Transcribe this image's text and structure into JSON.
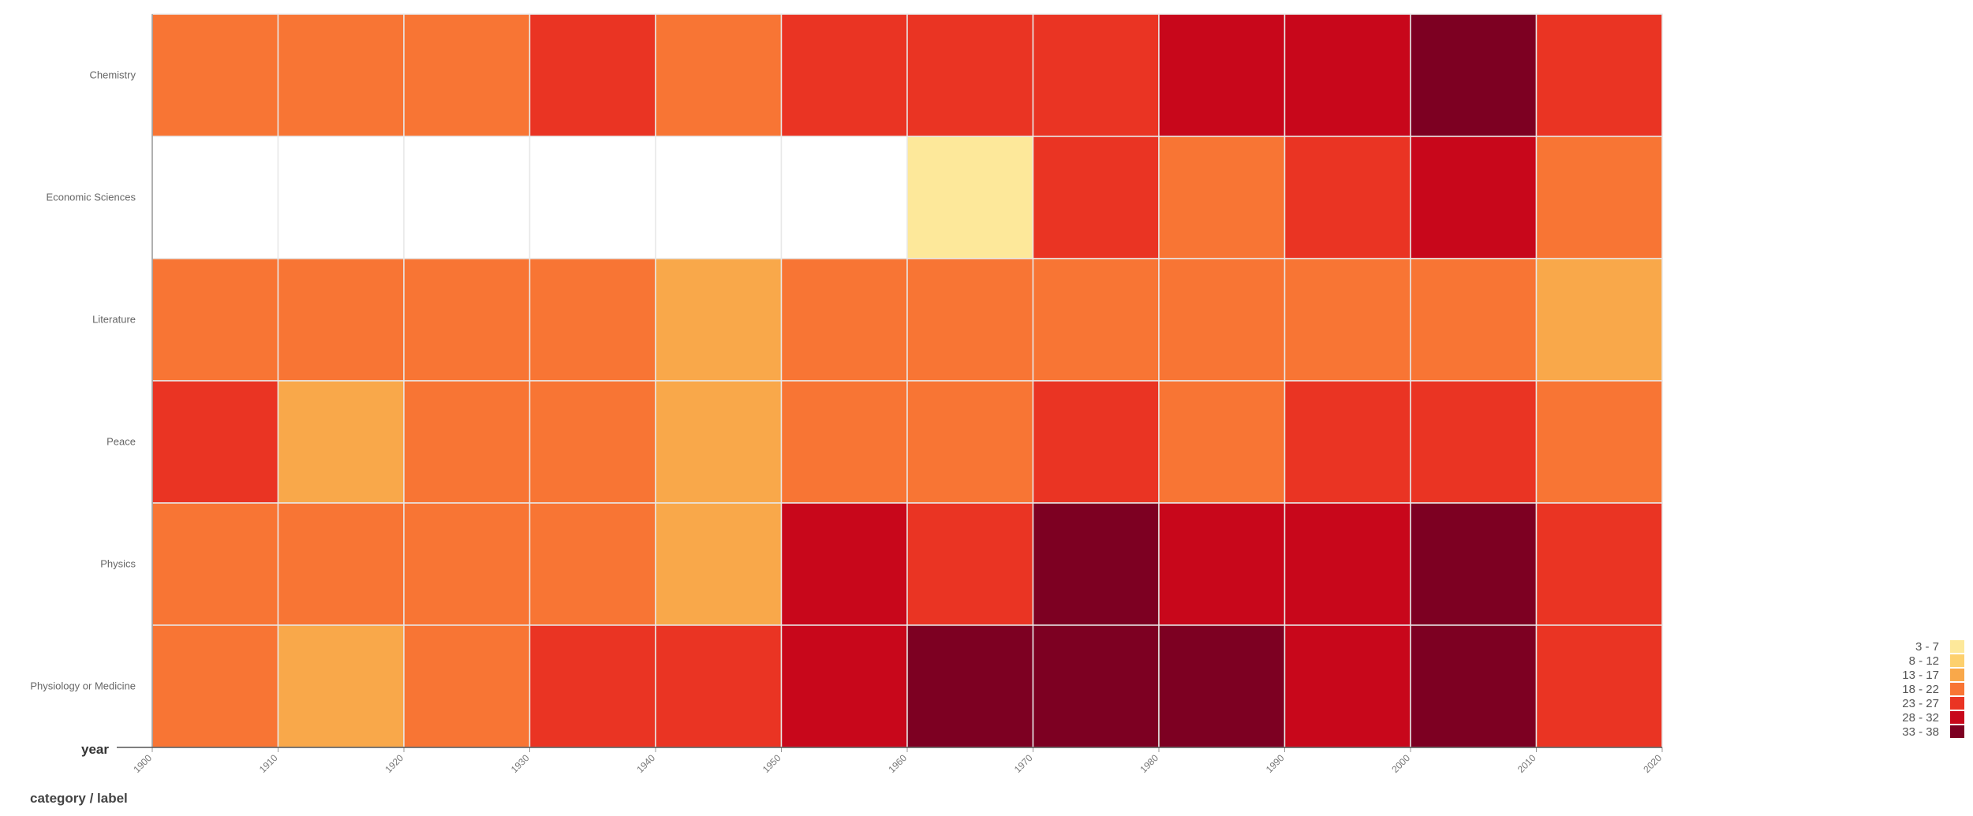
{
  "chart_data": {
    "type": "heatmap",
    "title": "",
    "x_axis_title": "year",
    "footer_label": "category / label",
    "columns": [
      "1900",
      "1910",
      "1920",
      "1930",
      "1940",
      "1950",
      "1960",
      "1970",
      "1980",
      "1990",
      "2000",
      "2010"
    ],
    "x_ticks": [
      "1900",
      "1910",
      "1920",
      "1930",
      "1940",
      "1950",
      "1960",
      "1970",
      "1980",
      "1990",
      "2000",
      "2010",
      "2020"
    ],
    "rows": [
      "Chemistry",
      "Economic Sciences",
      "Literature",
      "Peace",
      "Physics",
      "Physiology or Medicine"
    ],
    "bin_index": [
      [
        3,
        3,
        3,
        4,
        3,
        4,
        4,
        4,
        5,
        5,
        6,
        4
      ],
      [
        null,
        null,
        null,
        null,
        null,
        null,
        0,
        4,
        3,
        4,
        5,
        3
      ],
      [
        3,
        3,
        3,
        3,
        2,
        3,
        3,
        3,
        3,
        3,
        3,
        2
      ],
      [
        4,
        2,
        3,
        3,
        2,
        3,
        3,
        4,
        3,
        4,
        4,
        3
      ],
      [
        3,
        3,
        3,
        3,
        2,
        5,
        4,
        6,
        5,
        5,
        6,
        4
      ],
      [
        3,
        2,
        3,
        4,
        4,
        5,
        6,
        6,
        6,
        5,
        6,
        4
      ]
    ],
    "legend": [
      {
        "label": "3 - 7",
        "color": "#fde89a"
      },
      {
        "label": "8 - 12",
        "color": "#fdd06e"
      },
      {
        "label": "13 - 17",
        "color": "#f9a84a"
      },
      {
        "label": "18 - 22",
        "color": "#f87534"
      },
      {
        "label": "23 - 27",
        "color": "#ea3423"
      },
      {
        "label": "28 - 32",
        "color": "#c8071b"
      },
      {
        "label": "33 - 38",
        "color": "#7d0022"
      }
    ],
    "cell_colors": [
      "#fde89a",
      "#fdd06e",
      "#f9a84a",
      "#f87534",
      "#ea3423",
      "#c8071b",
      "#7d0022"
    ],
    "empty_color": "#ffffff",
    "legend_position": "bottom-right"
  }
}
